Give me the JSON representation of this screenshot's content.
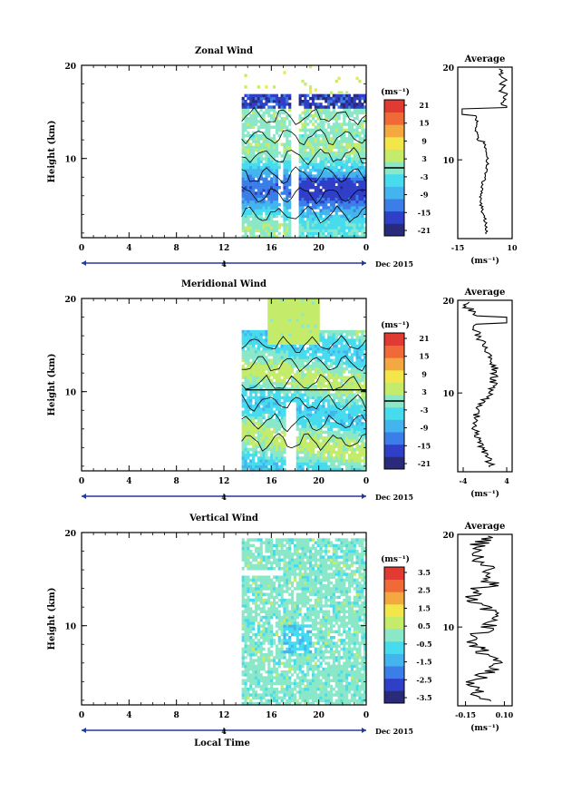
{
  "figure": {
    "xlabel_bottom": "Local Time",
    "date_label": "Dec 2015",
    "day_label": "4",
    "height_label": "Height (km)",
    "unit_label": "(ms⁻¹)"
  },
  "chart_data": [
    {
      "type": "heatmap",
      "title": "Zonal Wind",
      "ylabel": "Height (km)",
      "x_ticks": [
        "0",
        "4",
        "8",
        "12",
        "16",
        "20",
        "0"
      ],
      "xlim": [
        0,
        24
      ],
      "ylim": [
        1.5,
        20
      ],
      "y_ticks": [
        "20",
        "10"
      ],
      "colorbar": {
        "label": "(ms⁻¹)",
        "ticks": [
          "21",
          "15",
          "9",
          "3",
          "-3",
          "-9",
          "-15",
          "-21"
        ],
        "range": [
          -24,
          24
        ],
        "contour_at": 0
      },
      "profile": {
        "title": "Average",
        "x_ticks": [
          "-15",
          "10"
        ],
        "xlim": [
          -15,
          10
        ],
        "xlabel": "(ms⁻¹)",
        "y_ticks": [
          "20",
          "10"
        ]
      }
    },
    {
      "type": "heatmap",
      "title": "Meridional Wind",
      "ylabel": "Height (km)",
      "x_ticks": [
        "0",
        "4",
        "8",
        "12",
        "16",
        "20",
        "0"
      ],
      "xlim": [
        0,
        24
      ],
      "ylim": [
        1.5,
        20
      ],
      "y_ticks": [
        "20",
        "10"
      ],
      "colorbar": {
        "label": "(ms⁻¹)",
        "ticks": [
          "21",
          "15",
          "9",
          "3",
          "-3",
          "-9",
          "-15",
          "-21"
        ],
        "range": [
          -24,
          24
        ],
        "contour_at": 0
      },
      "profile": {
        "title": "Average",
        "x_ticks": [
          "-4",
          "4"
        ],
        "xlim": [
          -5,
          5
        ],
        "xlabel": "(ms⁻¹)",
        "y_ticks": [
          "20",
          "10"
        ]
      }
    },
    {
      "type": "heatmap",
      "title": "Vertical Wind",
      "ylabel": "Height (km)",
      "x_ticks": [
        "0",
        "4",
        "8",
        "12",
        "16",
        "20",
        "0"
      ],
      "xlim": [
        0,
        24
      ],
      "ylim": [
        1.5,
        20
      ],
      "y_ticks": [
        "20",
        "10"
      ],
      "colorbar": {
        "label": "(ms⁻¹)",
        "ticks": [
          "3.5",
          "2.5",
          "1.5",
          "0.5",
          "-0.5",
          "-1.5",
          "-2.5",
          "-3.5"
        ],
        "range": [
          -4,
          4
        ],
        "contour_at": null
      },
      "profile": {
        "title": "Average",
        "x_ticks": [
          "-0.15",
          "0.10"
        ],
        "xlim": [
          -0.2,
          0.15
        ],
        "xlabel": "(ms⁻¹)",
        "y_ticks": [
          "20",
          "10"
        ]
      }
    }
  ],
  "colors": {
    "scale": [
      "#2a2a7a",
      "#2f3fc8",
      "#3b7ee8",
      "#44b4ee",
      "#46dcee",
      "#8ae8c8",
      "#c4ec6a",
      "#f2e64a",
      "#f4a840",
      "#f06a38",
      "#e03a32"
    ]
  }
}
